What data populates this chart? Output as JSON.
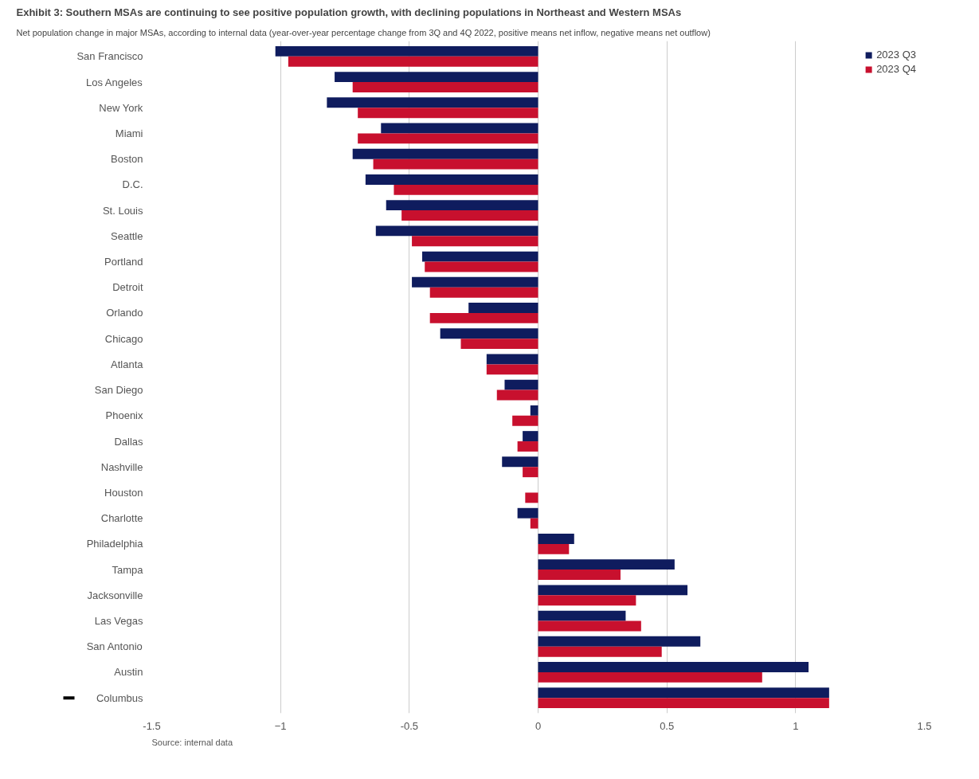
{
  "chart_data": {
    "type": "bar",
    "orientation": "horizontal",
    "title": "Exhibit 3: Southern MSAs are continuing to see positive population growth, with declining populations in Northeast and Western MSAs",
    "subtitle": "Net population change in major MSAs, according to internal data (year-over-year percentage change from 3Q and 4Q 2022, positive means net inflow, negative means net outflow)",
    "categories": [
      "San Francisco",
      "Los Angeles",
      "New York",
      "Miami",
      "Boston",
      "D.C.",
      "St. Louis",
      "Seattle",
      "Portland",
      "Detroit",
      "Orlando",
      "Chicago",
      "Atlanta",
      "San Diego",
      "Phoenix",
      "Dallas",
      "Nashville",
      "Houston",
      "Charlotte",
      "Philadelphia",
      "Tampa",
      "Jacksonville",
      "Las Vegas",
      "San Antonio",
      "Austin",
      "Columbus"
    ],
    "series": [
      {
        "name": "2023 Q3",
        "color": "#0f1c5e",
        "values": [
          -1.02,
          -0.79,
          -0.82,
          -0.61,
          -0.72,
          -0.67,
          -0.59,
          -0.63,
          -0.45,
          -0.49,
          -0.27,
          -0.38,
          -0.2,
          -0.13,
          -0.03,
          -0.06,
          -0.14,
          0,
          -0.08,
          0.14,
          0.53,
          0.58,
          0.34,
          0.63,
          1.05,
          1.13
        ]
      },
      {
        "name": "2023 Q4",
        "color": "#c8102e",
        "values": [
          -0.97,
          -0.72,
          -0.7,
          -0.7,
          -0.64,
          -0.56,
          -0.53,
          -0.49,
          -0.44,
          -0.42,
          -0.42,
          -0.3,
          -0.2,
          -0.16,
          -0.1,
          -0.08,
          -0.06,
          -0.05,
          -0.03,
          0.12,
          0.32,
          0.38,
          0.4,
          0.48,
          0.87,
          1.13
        ]
      }
    ],
    "xlim": [
      -1.5,
      1.5
    ],
    "xticks": [
      {
        "value": -1.5,
        "label": "-1.5"
      },
      -1,
      {
        "value": -0.5,
        "label": "-0.5"
      },
      0,
      0.5,
      1,
      1.5
    ],
    "grid": "x",
    "legend": "top right",
    "annotations": [
      "Source: internal data"
    ]
  }
}
